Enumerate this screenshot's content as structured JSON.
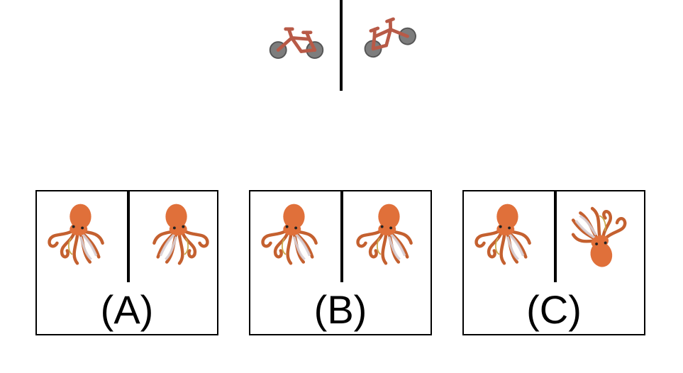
{
  "colors": {
    "bike_frame": "#b85a47",
    "wheel": "#7d7d7d",
    "octopus_body": "#e0703a",
    "octopus_light": "#d8cfd4",
    "line": "#000000"
  },
  "reference": {
    "left_icon": "bicycle-icon",
    "right_icon": "bicycle-icon-flipped-rotated"
  },
  "options": [
    {
      "label": "(A)",
      "left_icon": "octopus-icon",
      "right_icon": "octopus-icon-mirrored"
    },
    {
      "label": "(B)",
      "left_icon": "octopus-icon",
      "right_icon": "octopus-icon"
    },
    {
      "label": "(C)",
      "left_icon": "octopus-icon",
      "right_icon": "octopus-icon-rotated"
    }
  ]
}
